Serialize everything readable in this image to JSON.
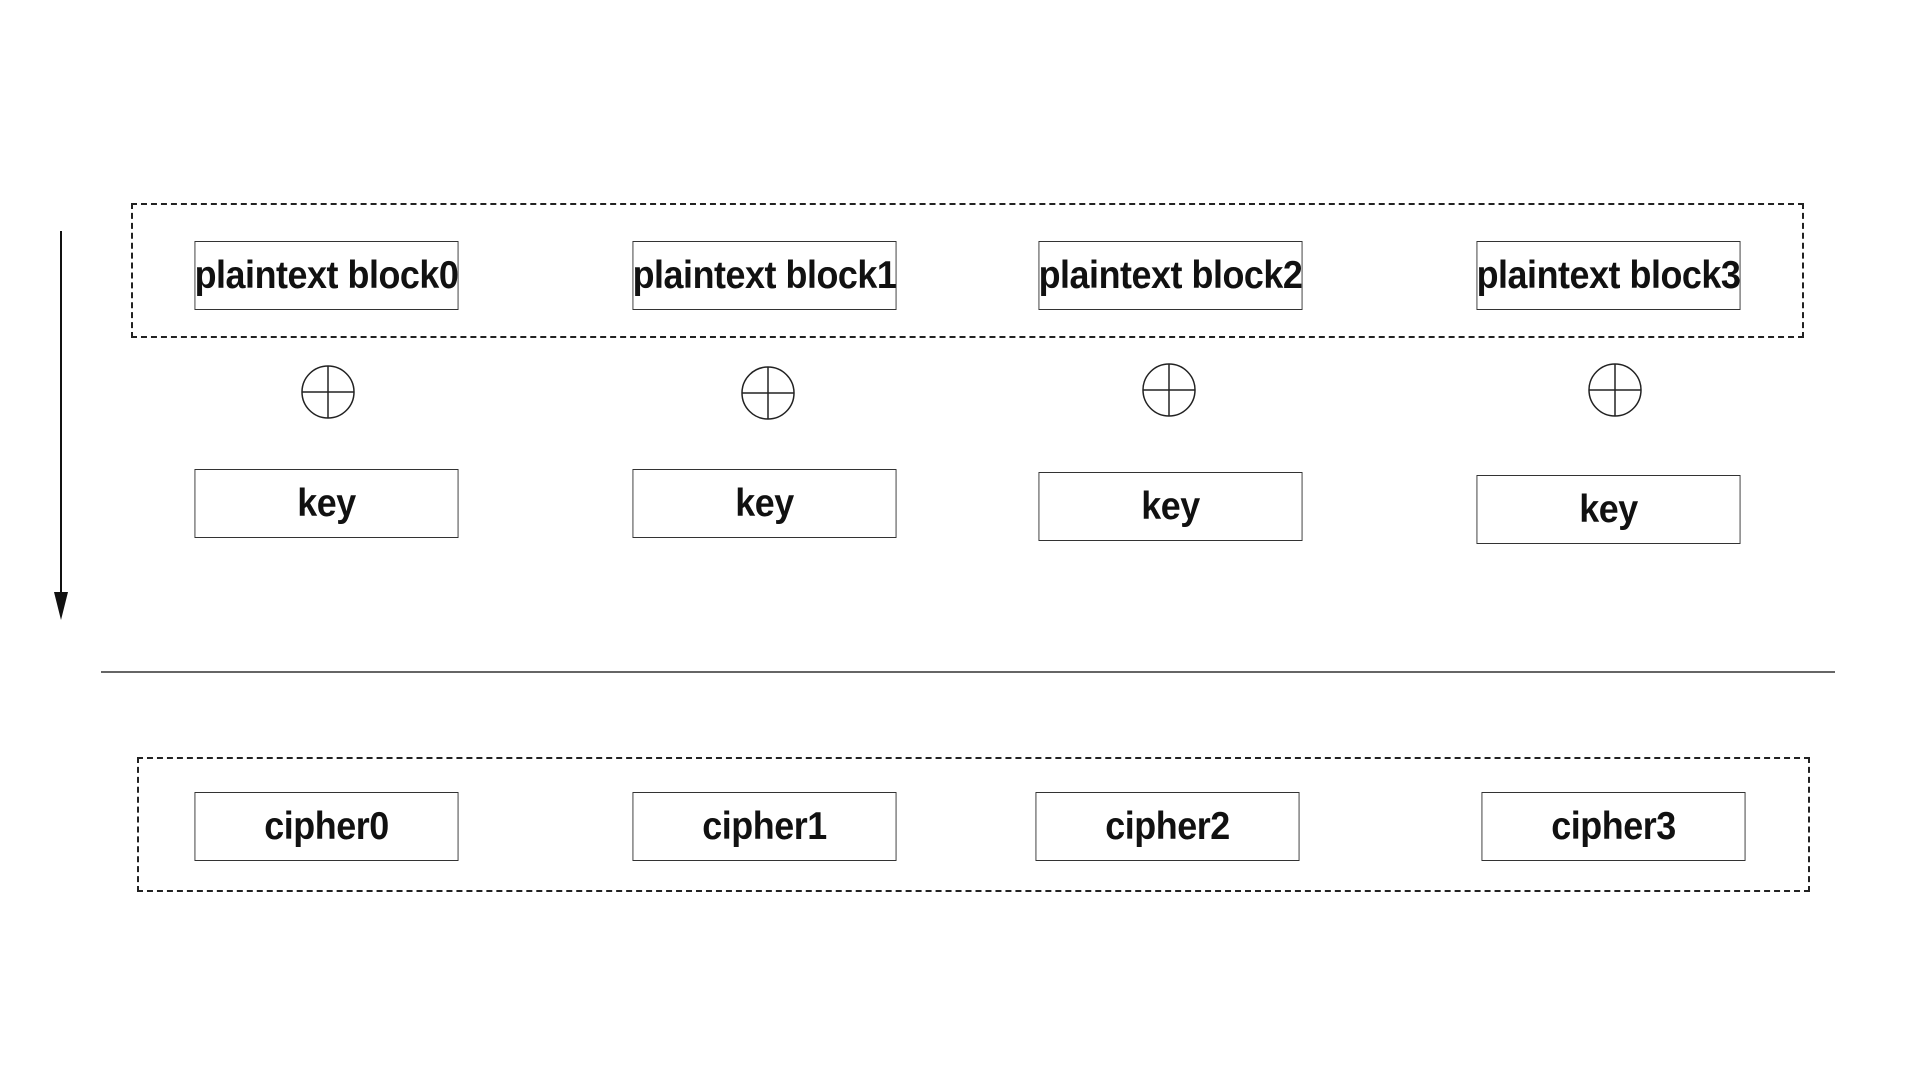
{
  "plaintext_blocks": [
    {
      "label": "plaintext block0"
    },
    {
      "label": "plaintext block1"
    },
    {
      "label": "plaintext block2"
    },
    {
      "label": "plaintext block3"
    }
  ],
  "xor_symbols": [
    {
      "icon": "xor-icon"
    },
    {
      "icon": "xor-icon"
    },
    {
      "icon": "xor-icon"
    },
    {
      "icon": "xor-icon"
    }
  ],
  "key_blocks": [
    {
      "label": "key"
    },
    {
      "label": "key"
    },
    {
      "label": "key"
    },
    {
      "label": "key"
    }
  ],
  "cipher_blocks": [
    {
      "label": "cipher0"
    },
    {
      "label": "cipher1"
    },
    {
      "label": "cipher2"
    },
    {
      "label": "cipher3"
    }
  ],
  "flow_arrow": {
    "icon": "down-arrow-icon",
    "direction": "down"
  },
  "colors": {
    "stroke": "#222222",
    "text": "#111111",
    "background": "#ffffff"
  }
}
